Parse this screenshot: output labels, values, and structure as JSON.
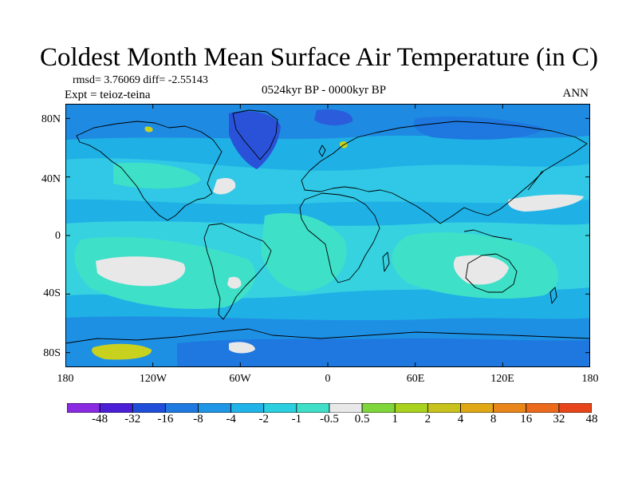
{
  "title": "Coldest Month Mean Surface Air Temperature (in C)",
  "stats": "rmsd= 3.76069 diff= -2.55143",
  "experiment": "Expt = teioz-teina",
  "period": "0524kyr BP - 0000kyr BP",
  "season": "ANN",
  "map": {
    "lon_range": [
      -180,
      180
    ],
    "lat_range": [
      -90,
      90
    ],
    "x_ticks": [
      "180",
      "120W",
      "60W",
      "0",
      "60E",
      "120E",
      "180"
    ],
    "y_ticks": [
      "80N",
      "40N",
      "0",
      "40S",
      "80S"
    ]
  },
  "colorbar": {
    "colors": [
      "#8a2be2",
      "#4a1fd6",
      "#1f4fd8",
      "#1e7ae0",
      "#1f96e6",
      "#22b4e8",
      "#2ccfe0",
      "#40e0c8",
      "#e8e8e8",
      "#7fd63a",
      "#a8d21e",
      "#c8c21e",
      "#e0a816",
      "#e8861a",
      "#ec6a1c",
      "#e8461a"
    ],
    "labels": [
      "-48",
      "-32",
      "-16",
      "-8",
      "-4",
      "-2",
      "-1",
      "-0.5",
      "0.5",
      "1",
      "2",
      "4",
      "8",
      "16",
      "32",
      "48"
    ]
  },
  "colors": {
    "base": "#1fb0e6",
    "warm_band": "#30c8e6",
    "green_zone": "#3ee0c8",
    "deep": "#1e78e0",
    "deepest": "#2a52d8",
    "neutral": "#e8e8e8",
    "yellow": "#c8d21e",
    "coast": "#000000"
  }
}
